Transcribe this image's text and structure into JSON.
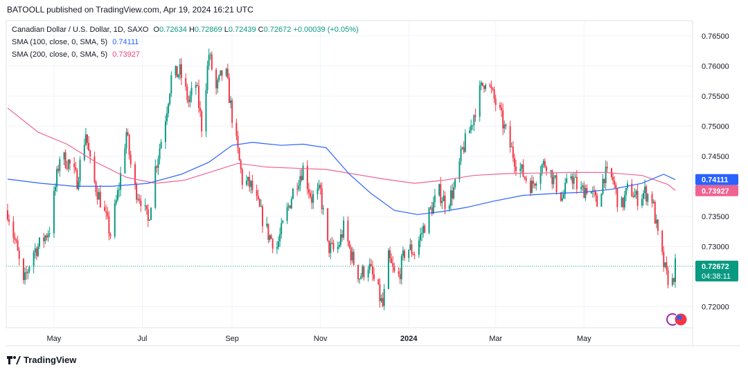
{
  "header": {
    "publisher": "BATOOLL published on TradingView.com, Apr 19, 2024 16:21 UTC"
  },
  "legend": {
    "symbol": "Canadian Dollar / U.S. Dollar, 1D, SAXO",
    "open_label": "O",
    "open": "0.72634",
    "high_label": "H",
    "high": "0.72869",
    "low_label": "L",
    "low": "0.72439",
    "close_label": "C",
    "close": "0.72672",
    "change": "+0.00039 (+0.05%)",
    "sma100_label": "SMA (100, close, 0, SMA, 5)",
    "sma100_value": "0.74111",
    "sma200_label": "SMA (200, close, 0, SMA, 5)",
    "sma200_value": "0.73927"
  },
  "footer": {
    "brand": "TradingView"
  },
  "colors": {
    "up": "#089981",
    "down": "#f23645",
    "sma100": "#2962ff",
    "sma200": "#f06292",
    "grid": "#f0f3fa",
    "axis_text": "#131722"
  },
  "chart_data": {
    "type": "candlestick",
    "title": "Canadian Dollar / U.S. Dollar, 1D, SAXO",
    "x_ticks": [
      "May",
      "Jul",
      "Sep",
      "Nov",
      "2024",
      "Mar",
      "May"
    ],
    "y_ticks": [
      "0.76500",
      "0.76000",
      "0.75500",
      "0.75000",
      "0.74500",
      "0.73500",
      "0.73000",
      "0.72000"
    ],
    "ylim": [
      0.7165,
      0.7675
    ],
    "last_price": "0.72672",
    "countdown": "04:38:11",
    "sma100_badge": "0.74111",
    "sma200_badge": "0.73927",
    "grid": true,
    "close_path": [
      {
        "date": "2023-03-30",
        "close": 0.736
      },
      {
        "date": "2023-04-05",
        "close": 0.73
      },
      {
        "date": "2023-04-10",
        "close": 0.7235
      },
      {
        "date": "2023-04-16",
        "close": 0.729
      },
      {
        "date": "2023-04-22",
        "close": 0.7305
      },
      {
        "date": "2023-04-28",
        "close": 0.733
      },
      {
        "date": "2023-05-05",
        "close": 0.745
      },
      {
        "date": "2023-05-11",
        "close": 0.744
      },
      {
        "date": "2023-05-17",
        "close": 0.741
      },
      {
        "date": "2023-05-23",
        "close": 0.749
      },
      {
        "date": "2023-05-27",
        "close": 0.742
      },
      {
        "date": "2023-06-03",
        "close": 0.737
      },
      {
        "date": "2023-06-09",
        "close": 0.732
      },
      {
        "date": "2023-06-15",
        "close": 0.74
      },
      {
        "date": "2023-06-20",
        "close": 0.749
      },
      {
        "date": "2023-06-25",
        "close": 0.74
      },
      {
        "date": "2023-06-30",
        "close": 0.738
      },
      {
        "date": "2023-07-05",
        "close": 0.734
      },
      {
        "date": "2023-07-10",
        "close": 0.743
      },
      {
        "date": "2023-07-16",
        "close": 0.75
      },
      {
        "date": "2023-07-21",
        "close": 0.758
      },
      {
        "date": "2023-07-27",
        "close": 0.759
      },
      {
        "date": "2023-08-02",
        "close": 0.754
      },
      {
        "date": "2023-08-07",
        "close": 0.757
      },
      {
        "date": "2023-08-11",
        "close": 0.75
      },
      {
        "date": "2023-08-16",
        "close": 0.762
      },
      {
        "date": "2023-08-21",
        "close": 0.756
      },
      {
        "date": "2023-08-27",
        "close": 0.76
      },
      {
        "date": "2023-09-02",
        "close": 0.75
      },
      {
        "date": "2023-09-08",
        "close": 0.741
      },
      {
        "date": "2023-09-14",
        "close": 0.74
      },
      {
        "date": "2023-09-20",
        "close": 0.736
      },
      {
        "date": "2023-09-26",
        "close": 0.732
      },
      {
        "date": "2023-10-02",
        "close": 0.73
      },
      {
        "date": "2023-10-08",
        "close": 0.735
      },
      {
        "date": "2023-10-14",
        "close": 0.74
      },
      {
        "date": "2023-10-20",
        "close": 0.743
      },
      {
        "date": "2023-10-26",
        "close": 0.738
      },
      {
        "date": "2023-11-01",
        "close": 0.739
      },
      {
        "date": "2023-11-06",
        "close": 0.73
      },
      {
        "date": "2023-11-12",
        "close": 0.729
      },
      {
        "date": "2023-11-17",
        "close": 0.733
      },
      {
        "date": "2023-11-23",
        "close": 0.728
      },
      {
        "date": "2023-11-28",
        "close": 0.725
      },
      {
        "date": "2023-12-04",
        "close": 0.727
      },
      {
        "date": "2023-12-10",
        "close": 0.723
      },
      {
        "date": "2023-12-14",
        "close": 0.72
      },
      {
        "date": "2023-12-18",
        "close": 0.728
      },
      {
        "date": "2023-12-24",
        "close": 0.724
      },
      {
        "date": "2023-12-30",
        "close": 0.73
      },
      {
        "date": "2024-01-05",
        "close": 0.729
      },
      {
        "date": "2024-01-11",
        "close": 0.733
      },
      {
        "date": "2024-01-16",
        "close": 0.736
      },
      {
        "date": "2024-01-22",
        "close": 0.739
      },
      {
        "date": "2024-01-27",
        "close": 0.737
      },
      {
        "date": "2024-02-02",
        "close": 0.74
      },
      {
        "date": "2024-02-07",
        "close": 0.746
      },
      {
        "date": "2024-02-13",
        "close": 0.75
      },
      {
        "date": "2024-02-18",
        "close": 0.755
      },
      {
        "date": "2024-02-23",
        "close": 0.758
      },
      {
        "date": "2024-02-28",
        "close": 0.755
      },
      {
        "date": "2024-03-04",
        "close": 0.752
      },
      {
        "date": "2024-03-09",
        "close": 0.748
      },
      {
        "date": "2024-03-15",
        "close": 0.744
      },
      {
        "date": "2024-03-20",
        "close": 0.742
      },
      {
        "date": "2024-03-26",
        "close": 0.74
      },
      {
        "date": "2024-03-31",
        "close": 0.743
      },
      {
        "date": "2024-04-05",
        "close": 0.744
      },
      {
        "date": "2024-04-10",
        "close": 0.741
      },
      {
        "date": "2024-04-16",
        "close": 0.738
      },
      {
        "date": "2024-04-22",
        "close": 0.742
      },
      {
        "date": "2024-04-28",
        "close": 0.739
      },
      {
        "date": "2024-05-04",
        "close": 0.74
      },
      {
        "date": "2024-05-10",
        "close": 0.737
      },
      {
        "date": "2024-05-15",
        "close": 0.742
      },
      {
        "date": "2024-05-21",
        "close": 0.741
      },
      {
        "date": "2024-05-26",
        "close": 0.736
      },
      {
        "date": "2024-06-01",
        "close": 0.74
      },
      {
        "date": "2024-06-06",
        "close": 0.738
      },
      {
        "date": "2024-06-12",
        "close": 0.739
      },
      {
        "date": "2024-06-17",
        "close": 0.738
      },
      {
        "date": "2024-06-22",
        "close": 0.73
      },
      {
        "date": "2024-06-27",
        "close": 0.725
      },
      {
        "date": "2024-07-01",
        "close": 0.724
      },
      {
        "date": "2024-07-03",
        "close": 0.7267
      }
    ],
    "sma100_path": [
      {
        "date": "2023-03-30",
        "v": 0.7412
      },
      {
        "date": "2023-04-22",
        "v": 0.7405
      },
      {
        "date": "2023-05-15",
        "v": 0.74
      },
      {
        "date": "2023-06-10",
        "v": 0.74
      },
      {
        "date": "2023-07-05",
        "v": 0.7405
      },
      {
        "date": "2023-07-28",
        "v": 0.742
      },
      {
        "date": "2023-08-16",
        "v": 0.744
      },
      {
        "date": "2023-09-01",
        "v": 0.7468
      },
      {
        "date": "2023-09-15",
        "v": 0.7473
      },
      {
        "date": "2023-10-05",
        "v": 0.7468
      },
      {
        "date": "2023-10-20",
        "v": 0.747
      },
      {
        "date": "2023-11-05",
        "v": 0.7464
      },
      {
        "date": "2023-11-21",
        "v": 0.742
      },
      {
        "date": "2023-12-06",
        "v": 0.7388
      },
      {
        "date": "2023-12-22",
        "v": 0.736
      },
      {
        "date": "2024-01-07",
        "v": 0.7353
      },
      {
        "date": "2024-01-24",
        "v": 0.7358
      },
      {
        "date": "2024-02-10",
        "v": 0.7365
      },
      {
        "date": "2024-02-28",
        "v": 0.7375
      },
      {
        "date": "2024-03-20",
        "v": 0.7385
      },
      {
        "date": "2024-04-10",
        "v": 0.7388
      },
      {
        "date": "2024-04-30",
        "v": 0.739
      },
      {
        "date": "2024-05-20",
        "v": 0.7395
      },
      {
        "date": "2024-06-10",
        "v": 0.7405
      },
      {
        "date": "2024-06-25",
        "v": 0.742
      },
      {
        "date": "2024-07-03",
        "v": 0.7411
      }
    ],
    "sma200_path": [
      {
        "date": "2023-03-30",
        "v": 0.753
      },
      {
        "date": "2023-04-20",
        "v": 0.749
      },
      {
        "date": "2023-05-10",
        "v": 0.747
      },
      {
        "date": "2023-05-30",
        "v": 0.744
      },
      {
        "date": "2023-06-20",
        "v": 0.7415
      },
      {
        "date": "2023-07-10",
        "v": 0.7405
      },
      {
        "date": "2023-07-30",
        "v": 0.741
      },
      {
        "date": "2023-08-19",
        "v": 0.7425
      },
      {
        "date": "2023-09-05",
        "v": 0.7438
      },
      {
        "date": "2023-09-25",
        "v": 0.7432
      },
      {
        "date": "2023-10-15",
        "v": 0.743
      },
      {
        "date": "2023-11-05",
        "v": 0.7428
      },
      {
        "date": "2023-11-25",
        "v": 0.742
      },
      {
        "date": "2023-12-15",
        "v": 0.7412
      },
      {
        "date": "2024-01-05",
        "v": 0.7405
      },
      {
        "date": "2024-01-25",
        "v": 0.741
      },
      {
        "date": "2024-02-15",
        "v": 0.7418
      },
      {
        "date": "2024-03-08",
        "v": 0.7421
      },
      {
        "date": "2024-03-30",
        "v": 0.7422
      },
      {
        "date": "2024-04-20",
        "v": 0.7423
      },
      {
        "date": "2024-05-15",
        "v": 0.7423
      },
      {
        "date": "2024-06-10",
        "v": 0.7418
      },
      {
        "date": "2024-06-28",
        "v": 0.7403
      },
      {
        "date": "2024-07-03",
        "v": 0.7393
      }
    ]
  }
}
